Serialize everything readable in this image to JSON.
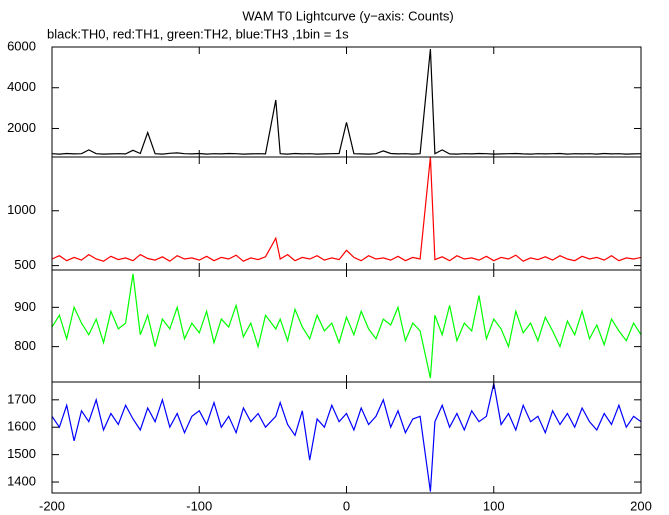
{
  "chart_data": [
    {
      "type": "line",
      "title": "WAM T0 Lightcurve (y−axis: Counts)",
      "subtitle": "black:TH0, red:TH1, green:TH2, blue:TH3 ,1bin = 1s",
      "x": [
        -200,
        -195,
        -190,
        -185,
        -180,
        -175,
        -170,
        -165,
        -160,
        -155,
        -150,
        -145,
        -140,
        -135,
        -130,
        -125,
        -120,
        -115,
        -110,
        -105,
        -100,
        -95,
        -90,
        -85,
        -80,
        -75,
        -70,
        -65,
        -60,
        -55,
        -48,
        -45,
        -40,
        -35,
        -30,
        -25,
        -20,
        -15,
        -10,
        -5,
        0,
        5,
        10,
        15,
        20,
        25,
        30,
        35,
        40,
        45,
        50,
        57,
        60,
        65,
        70,
        75,
        80,
        85,
        90,
        95,
        100,
        105,
        110,
        115,
        120,
        125,
        130,
        135,
        140,
        145,
        150,
        155,
        160,
        165,
        170,
        175,
        180,
        185,
        190,
        195,
        200
      ],
      "xlim": [
        -200,
        200
      ],
      "xticks": [
        -200,
        -100,
        0,
        100,
        200
      ],
      "ylim": [
        600,
        6000
      ],
      "yticks": [
        2000,
        4000,
        6000
      ],
      "series": [
        {
          "name": "TH0",
          "color": "#000000",
          "values": [
            760,
            740,
            770,
            750,
            760,
            950,
            760,
            740,
            750,
            760,
            750,
            930,
            770,
            1800,
            760,
            740,
            780,
            800,
            760,
            750,
            770,
            740,
            760,
            750,
            770,
            760,
            740,
            750,
            760,
            750,
            3400,
            760,
            740,
            770,
            750,
            760,
            740,
            750,
            760,
            770,
            2300,
            760,
            750,
            740,
            760,
            900,
            770,
            750,
            760,
            740,
            760,
            5900,
            760,
            950,
            750,
            740,
            760,
            750,
            770,
            760,
            740,
            750,
            760,
            770,
            750,
            740,
            760,
            750,
            760,
            770,
            740,
            760,
            750,
            760,
            740,
            770,
            750,
            760,
            740,
            750,
            760
          ]
        }
      ]
    },
    {
      "type": "line",
      "x": [
        -200,
        -195,
        -190,
        -185,
        -180,
        -175,
        -170,
        -165,
        -160,
        -155,
        -150,
        -145,
        -140,
        -135,
        -130,
        -125,
        -120,
        -115,
        -110,
        -105,
        -100,
        -95,
        -90,
        -85,
        -80,
        -75,
        -70,
        -65,
        -60,
        -55,
        -48,
        -45,
        -40,
        -35,
        -30,
        -25,
        -20,
        -15,
        -10,
        -5,
        0,
        5,
        10,
        15,
        20,
        25,
        30,
        35,
        40,
        45,
        50,
        57,
        60,
        65,
        70,
        75,
        80,
        85,
        90,
        95,
        100,
        105,
        110,
        115,
        120,
        125,
        130,
        135,
        140,
        145,
        150,
        155,
        160,
        165,
        170,
        175,
        180,
        185,
        190,
        195,
        200
      ],
      "xlim": [
        -200,
        200
      ],
      "xticks": [
        -200,
        -100,
        0,
        100,
        200
      ],
      "ylim": [
        460,
        1490
      ],
      "yticks": [
        500,
        1000
      ],
      "series": [
        {
          "name": "TH1",
          "color": "#ff0000",
          "values": [
            560,
            590,
            545,
            575,
            550,
            600,
            560,
            540,
            585,
            555,
            570,
            545,
            600,
            565,
            550,
            580,
            540,
            590,
            560,
            570,
            550,
            585,
            545,
            575,
            560,
            595,
            540,
            570,
            555,
            580,
            750,
            560,
            600,
            545,
            575,
            560,
            590,
            550,
            570,
            555,
            640,
            575,
            545,
            590,
            560,
            570,
            550,
            585,
            545,
            575,
            560,
            1490,
            555,
            580,
            545,
            590,
            560,
            570,
            550,
            585,
            545,
            575,
            560,
            595,
            540,
            570,
            555,
            580,
            550,
            590,
            560,
            545,
            585,
            560,
            575,
            550,
            590,
            545,
            570,
            560,
            575
          ]
        }
      ]
    },
    {
      "type": "line",
      "x": [
        -200,
        -195,
        -190,
        -185,
        -180,
        -175,
        -170,
        -165,
        -160,
        -155,
        -150,
        -145,
        -140,
        -135,
        -130,
        -125,
        -120,
        -115,
        -110,
        -105,
        -100,
        -95,
        -90,
        -85,
        -80,
        -75,
        -70,
        -65,
        -60,
        -55,
        -48,
        -45,
        -40,
        -35,
        -30,
        -25,
        -20,
        -15,
        -10,
        -5,
        0,
        5,
        10,
        15,
        20,
        25,
        30,
        35,
        40,
        45,
        50,
        57,
        60,
        65,
        70,
        75,
        80,
        85,
        90,
        95,
        100,
        105,
        110,
        115,
        120,
        125,
        130,
        135,
        140,
        145,
        150,
        155,
        160,
        165,
        170,
        175,
        180,
        185,
        190,
        195,
        200
      ],
      "xlim": [
        -200,
        200
      ],
      "xticks": [
        -200,
        -100,
        0,
        100,
        200
      ],
      "ylim": [
        710,
        995
      ],
      "yticks": [
        800,
        900
      ],
      "series": [
        {
          "name": "TH2",
          "color": "#00ff00",
          "values": [
            850,
            880,
            820,
            900,
            860,
            830,
            870,
            810,
            890,
            845,
            860,
            985,
            830,
            880,
            800,
            870,
            845,
            900,
            820,
            860,
            835,
            890,
            810,
            870,
            850,
            905,
            825,
            860,
            800,
            880,
            845,
            870,
            815,
            895,
            850,
            820,
            880,
            840,
            860,
            810,
            875,
            830,
            890,
            845,
            820,
            870,
            855,
            900,
            815,
            860,
            840,
            720,
            880,
            830,
            905,
            815,
            860,
            840,
            930,
            820,
            870,
            845,
            800,
            890,
            835,
            860,
            815,
            875,
            840,
            800,
            865,
            830,
            890,
            820,
            855,
            805,
            870,
            840,
            815,
            860,
            830
          ]
        }
      ]
    },
    {
      "type": "line",
      "x": [
        -200,
        -195,
        -190,
        -185,
        -180,
        -175,
        -170,
        -165,
        -160,
        -155,
        -150,
        -145,
        -140,
        -135,
        -130,
        -125,
        -120,
        -115,
        -110,
        -105,
        -100,
        -95,
        -90,
        -85,
        -80,
        -75,
        -70,
        -65,
        -60,
        -55,
        -48,
        -45,
        -40,
        -35,
        -30,
        -25,
        -20,
        -15,
        -10,
        -5,
        0,
        5,
        10,
        15,
        20,
        25,
        30,
        35,
        40,
        45,
        50,
        57,
        60,
        65,
        70,
        75,
        80,
        85,
        90,
        95,
        100,
        105,
        110,
        115,
        120,
        125,
        130,
        135,
        140,
        145,
        150,
        155,
        160,
        165,
        170,
        175,
        180,
        185,
        190,
        195,
        200
      ],
      "xlim": [
        -200,
        200
      ],
      "xticks": [
        -200,
        -100,
        0,
        100,
        200
      ],
      "ylim": [
        1360,
        1765
      ],
      "yticks": [
        1400,
        1500,
        1600,
        1700
      ],
      "series": [
        {
          "name": "TH3",
          "color": "#0000ff",
          "values": [
            1640,
            1600,
            1680,
            1550,
            1660,
            1620,
            1700,
            1590,
            1650,
            1610,
            1680,
            1630,
            1590,
            1670,
            1620,
            1700,
            1600,
            1650,
            1580,
            1640,
            1660,
            1610,
            1690,
            1600,
            1640,
            1580,
            1670,
            1620,
            1650,
            1600,
            1640,
            1690,
            1610,
            1570,
            1660,
            1480,
            1630,
            1600,
            1680,
            1620,
            1650,
            1590,
            1670,
            1610,
            1640,
            1700,
            1600,
            1660,
            1580,
            1630,
            1640,
            1365,
            1620,
            1680,
            1600,
            1650,
            1590,
            1660,
            1620,
            1640,
            1760,
            1610,
            1650,
            1590,
            1680,
            1620,
            1640,
            1580,
            1660,
            1610,
            1650,
            1600,
            1670,
            1620,
            1590,
            1650,
            1610,
            1680,
            1600,
            1640,
            1620
          ]
        }
      ]
    }
  ]
}
